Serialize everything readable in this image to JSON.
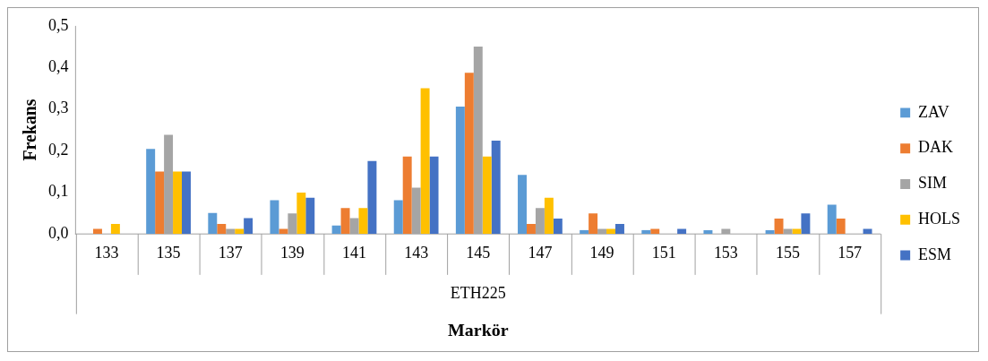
{
  "chart_data": {
    "type": "bar",
    "xlabel": "Markör",
    "ylabel": "Frekans",
    "annotations": [
      "ETH225"
    ],
    "categories": [
      "133",
      "135",
      "137",
      "139",
      "141",
      "143",
      "145",
      "147",
      "149",
      "151",
      "153",
      "155",
      "157"
    ],
    "series": [
      {
        "name": "ZAV",
        "color": "#5b9bd5",
        "values": [
          null,
          0.204,
          0.05,
          0.081,
          0.02,
          0.081,
          0.306,
          0.142,
          0.009,
          0.009,
          0.009,
          0.009,
          0.07
        ]
      },
      {
        "name": "DAK",
        "color": "#ed7d31",
        "values": [
          0.012,
          0.15,
          0.024,
          0.012,
          0.062,
          0.186,
          0.387,
          0.024,
          0.049,
          0.012,
          null,
          0.037,
          0.037
        ]
      },
      {
        "name": "SIM",
        "color": "#a5a5a5",
        "values": [
          null,
          0.238,
          0.012,
          0.049,
          0.038,
          0.111,
          0.45,
          0.062,
          0.012,
          null,
          0.012,
          0.012,
          null
        ]
      },
      {
        "name": "HOLS",
        "color": "#ffc000",
        "values": [
          0.024,
          0.15,
          0.012,
          0.099,
          0.062,
          0.35,
          0.186,
          0.087,
          0.012,
          null,
          null,
          0.012,
          null
        ]
      },
      {
        "name": "ESM",
        "color": "#4472c4",
        "values": [
          null,
          0.15,
          0.038,
          0.087,
          0.175,
          0.186,
          0.224,
          0.037,
          0.024,
          0.012,
          null,
          0.049,
          0.012
        ]
      }
    ],
    "ylim": [
      0,
      0.5
    ],
    "yticks": [
      {
        "value": 0,
        "label": "0,0"
      },
      {
        "value": 0.1,
        "label": "0,1"
      },
      {
        "value": 0.2,
        "label": "0,2"
      },
      {
        "value": 0.3,
        "label": "0,3"
      },
      {
        "value": 0.4,
        "label": "0,4"
      },
      {
        "value": 0.5,
        "label": "0,5"
      }
    ],
    "grid": false,
    "legend": "right"
  }
}
